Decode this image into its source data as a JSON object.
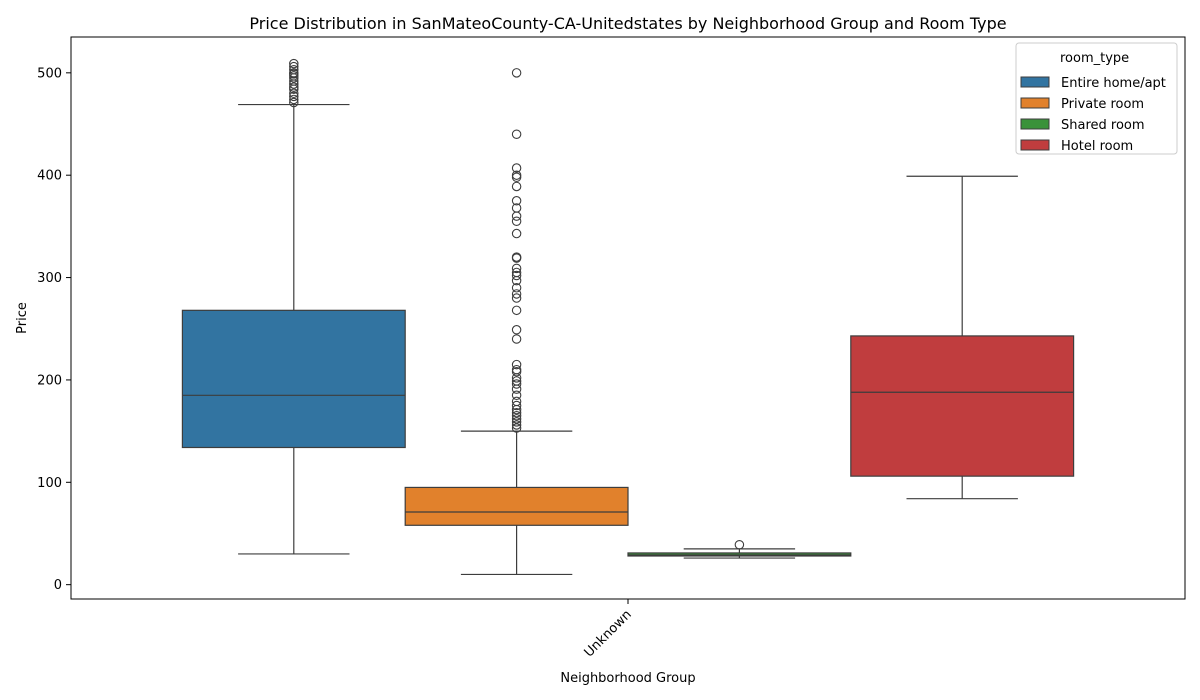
{
  "chart_data": {
    "type": "box",
    "title": "Price Distribution in SanMateoCounty-CA-Unitedstates by Neighborhood Group and Room Type",
    "xlabel": "Neighborhood Group",
    "ylabel": "Price",
    "categories": [
      "Unknown"
    ],
    "ylim": [
      -14,
      535
    ],
    "yticks": [
      0,
      100,
      200,
      300,
      400,
      500
    ],
    "grid": false,
    "legend": {
      "title": "room_type",
      "placement": "top-right"
    },
    "series": [
      {
        "name": "Entire home/apt",
        "color": "#3274a1",
        "whisker_low": 30,
        "q1": 134,
        "median": 185,
        "q3": 268,
        "whisker_high": 469,
        "outliers": [
          471,
          474,
          477,
          480,
          484,
          486,
          489,
          492,
          495,
          497,
          499,
          500,
          503,
          506,
          509
        ]
      },
      {
        "name": "Private room",
        "color": "#e1812c",
        "whisker_low": 10,
        "q1": 58,
        "median": 71,
        "q3": 95,
        "whisker_high": 150,
        "outliers": [
          153,
          156,
          159,
          162,
          165,
          168,
          171,
          175,
          179,
          185,
          191,
          196,
          199,
          202,
          208,
          210,
          215,
          240,
          249,
          268,
          280,
          284,
          290,
          297,
          302,
          305,
          309,
          319,
          320,
          343,
          355,
          360,
          368,
          375,
          389,
          398,
          400,
          407,
          440,
          500
        ]
      },
      {
        "name": "Shared room",
        "color": "#3a923a",
        "whisker_low": 26,
        "q1": 28,
        "median": 29,
        "q3": 31,
        "whisker_high": 35,
        "outliers": [
          39
        ]
      },
      {
        "name": "Hotel room",
        "color": "#c03d3e",
        "whisker_low": 84,
        "q1": 106,
        "median": 188,
        "q3": 243,
        "whisker_high": 399,
        "outliers": []
      }
    ]
  }
}
